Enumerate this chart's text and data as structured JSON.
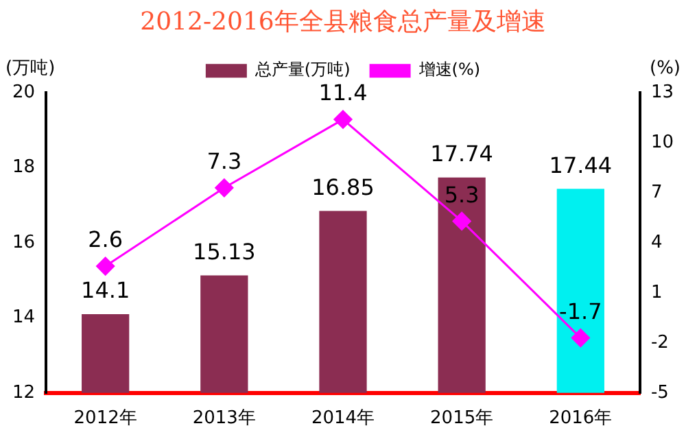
{
  "chart_data": {
    "type": "bar",
    "title": "2012-2016年全县粮食总产量及增速",
    "ylabel": "(万吨)",
    "y2label": "(%)",
    "categories": [
      "2012年",
      "2013年",
      "2014年",
      "2015年",
      "2016年"
    ],
    "series": [
      {
        "name": "总产量(万吨)",
        "color": "#8b2d52",
        "colors": [
          "#8b2d52",
          "#8b2d52",
          "#8b2d52",
          "#8b2d52",
          "#00f0f0"
        ],
        "values": [
          14.1,
          15.13,
          16.85,
          17.74,
          17.44
        ]
      },
      {
        "type": "line",
        "name": "增速(%)",
        "color": "#ff00ff",
        "axis": "y2",
        "marker": "diamond",
        "values": [
          2.6,
          7.3,
          11.4,
          5.3,
          -1.7
        ]
      }
    ],
    "ylim": [
      12,
      20
    ],
    "yticks": [
      12,
      14,
      16,
      18,
      20
    ],
    "y2lim": [
      -5,
      13
    ],
    "y2ticks": [
      -5,
      -2,
      1,
      4,
      7,
      10,
      13
    ],
    "data_labels": true,
    "grid": false,
    "legend": "top"
  }
}
